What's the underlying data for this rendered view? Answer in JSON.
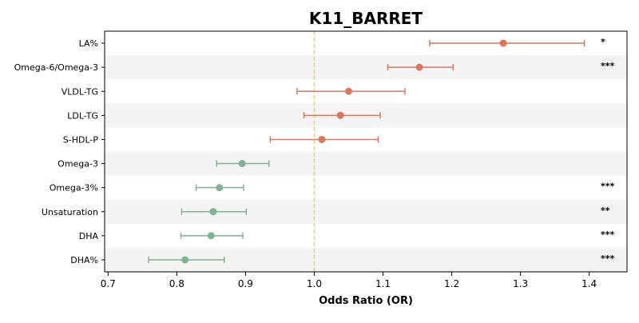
{
  "chart_data": {
    "type": "forest",
    "title": "K11_BARRET",
    "xlabel": "Odds Ratio (OR)",
    "ylabel": "",
    "xlim": [
      0.695,
      1.455
    ],
    "xticks": [
      0.7,
      0.8,
      0.9,
      1.0,
      1.1,
      1.2,
      1.3,
      1.4
    ],
    "xtick_labels": [
      "0.7",
      "0.8",
      "0.9",
      "1.0",
      "1.1",
      "1.2",
      "1.3",
      "1.4"
    ],
    "reference_line": 1.0,
    "grid": false,
    "alternating_row_shading": true,
    "colors": {
      "positive": "#d9785d",
      "negative": "#7fb394",
      "reference_line": "#f6c87a",
      "row_shade": "#f4f4f4"
    },
    "rows": [
      {
        "label": "LA%",
        "or": 1.275,
        "lower": 1.168,
        "upper": 1.393,
        "sig": "*",
        "direction": "positive"
      },
      {
        "label": "Omega-6/Omega-3",
        "or": 1.153,
        "lower": 1.107,
        "upper": 1.202,
        "sig": "***",
        "direction": "positive"
      },
      {
        "label": "VLDL-TG",
        "or": 1.05,
        "lower": 0.975,
        "upper": 1.132,
        "sig": "",
        "direction": "positive"
      },
      {
        "label": "LDL-TG",
        "or": 1.038,
        "lower": 0.985,
        "upper": 1.096,
        "sig": "",
        "direction": "positive"
      },
      {
        "label": "S-HDL-P",
        "or": 1.011,
        "lower": 0.936,
        "upper": 1.093,
        "sig": "",
        "direction": "positive"
      },
      {
        "label": "Omega-3",
        "or": 0.895,
        "lower": 0.858,
        "upper": 0.934,
        "sig": "",
        "direction": "negative"
      },
      {
        "label": "Omega-3%",
        "or": 0.862,
        "lower": 0.828,
        "upper": 0.897,
        "sig": "***",
        "direction": "negative"
      },
      {
        "label": "Unsaturation",
        "or": 0.853,
        "lower": 0.807,
        "upper": 0.901,
        "sig": "**",
        "direction": "negative"
      },
      {
        "label": "DHA",
        "or": 0.85,
        "lower": 0.806,
        "upper": 0.896,
        "sig": "***",
        "direction": "negative"
      },
      {
        "label": "DHA%",
        "or": 0.812,
        "lower": 0.759,
        "upper": 0.869,
        "sig": "***",
        "direction": "negative"
      }
    ]
  }
}
